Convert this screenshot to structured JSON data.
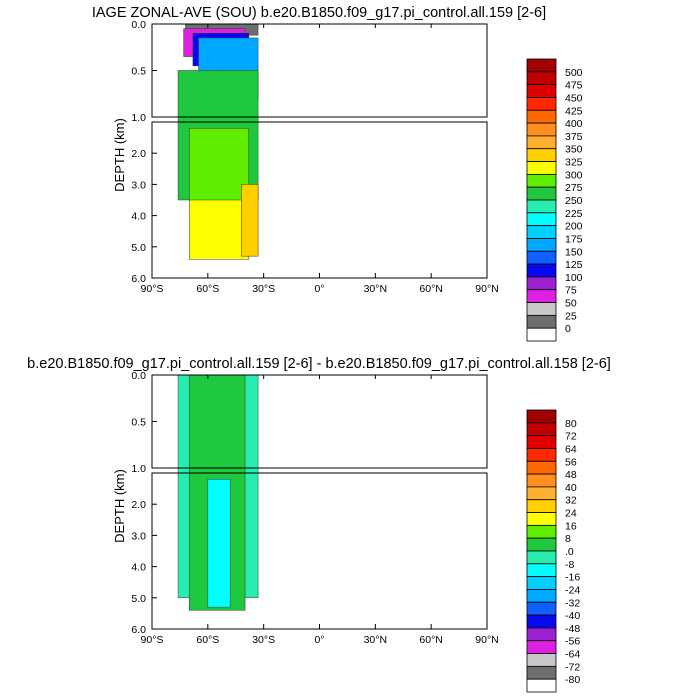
{
  "chart_data": [
    {
      "type": "heatmap",
      "title": "IAGE ZONAL-AVE (SOU) b.e20.B1850.f09_g17.pi_control.all.159 [2-6]",
      "ylabel": "DEPTH (km)",
      "xlim": [
        -90,
        90
      ],
      "ylim_top_panel": [
        0.0,
        1.0
      ],
      "ylim_bottom_panel": [
        1.0,
        6.0
      ],
      "x_tick_labels": [
        "90°S",
        "60°S",
        "30°S",
        "0°",
        "30°N",
        "60°N",
        "90°N"
      ],
      "x_tick_values": [
        -90,
        -60,
        -30,
        0,
        30,
        60,
        90
      ],
      "y_tick_labels_top": [
        "0.0",
        "0.5",
        "1.0"
      ],
      "y_tick_values_top": [
        0.0,
        0.5,
        1.0
      ],
      "y_tick_labels_bottom": [
        "2.0",
        "3.0",
        "4.0",
        "5.0",
        "6.0"
      ],
      "y_tick_values_bottom": [
        2.0,
        3.0,
        4.0,
        5.0,
        6.0
      ],
      "data_extent_lat": [
        -76,
        -33
      ],
      "colorbar_levels": [
        "0",
        "25",
        "50",
        "75",
        "100",
        "125",
        "150",
        "175",
        "200",
        "225",
        "250",
        "275",
        "300",
        "325",
        "350",
        "375",
        "400",
        "425",
        "450",
        "475",
        "500"
      ],
      "colorbar_colors": [
        "#ffffff",
        "#6e6e6e",
        "#c8c8c8",
        "#e020e0",
        "#9a20d0",
        "#0808f0",
        "#1060ff",
        "#00a8ff",
        "#00d0ff",
        "#00ffff",
        "#28ecb0",
        "#20c840",
        "#60ee00",
        "#ffff00",
        "#ffd000",
        "#ffb030",
        "#ff9020",
        "#ff6800",
        "#ff2800",
        "#e00000",
        "#c00000",
        "#a00000"
      ],
      "regions": [
        {
          "value_range": [
            0,
            25
          ],
          "level_index": 1,
          "depth_top": 0.0,
          "depth_bottom": 0.12,
          "lat_range": [
            -72,
            -33
          ]
        },
        {
          "value_range": [
            50,
            75
          ],
          "level_index": 3,
          "depth_top": 0.05,
          "depth_bottom": 0.35,
          "lat_range": [
            -73,
            -40
          ]
        },
        {
          "value_range": [
            100,
            125
          ],
          "level_index": 5,
          "depth_top": 0.1,
          "depth_bottom": 0.45,
          "lat_range": [
            -68,
            -38
          ]
        },
        {
          "value_range": [
            125,
            225
          ],
          "level_index": 7,
          "depth_top": 0.15,
          "depth_bottom": 0.8,
          "lat_range": [
            -65,
            -33
          ]
        },
        {
          "value_range": [
            250,
            275
          ],
          "level_index": 11,
          "depth_top": 0.5,
          "depth_bottom": 3.5,
          "lat_range": [
            -76,
            -33
          ]
        },
        {
          "value_range": [
            275,
            300
          ],
          "level_index": 12,
          "depth_top": 1.2,
          "depth_bottom": 3.8,
          "lat_range": [
            -70,
            -38
          ]
        },
        {
          "value_range": [
            300,
            325
          ],
          "level_index": 13,
          "depth_top": 3.5,
          "depth_bottom": 5.4,
          "lat_range": [
            -70,
            -38
          ]
        },
        {
          "value_range": [
            325,
            350
          ],
          "level_index": 14,
          "depth_top": 3.0,
          "depth_bottom": 5.3,
          "lat_range": [
            -42,
            -33
          ]
        }
      ]
    },
    {
      "type": "heatmap",
      "title": "b.e20.B1850.f09_g17.pi_control.all.159 [2-6] - b.e20.B1850.f09_g17.pi_control.all.158 [2-6]",
      "ylabel": "DEPTH (km)",
      "xlim": [
        -90,
        90
      ],
      "ylim_top_panel": [
        0.0,
        1.0
      ],
      "ylim_bottom_panel": [
        1.0,
        6.0
      ],
      "x_tick_labels": [
        "90°S",
        "60°S",
        "30°S",
        "0°",
        "30°N",
        "60°N",
        "90°N"
      ],
      "x_tick_values": [
        -90,
        -60,
        -30,
        0,
        30,
        60,
        90
      ],
      "y_tick_labels_top": [
        "0.0",
        "0.5",
        "1.0"
      ],
      "y_tick_values_top": [
        0.0,
        0.5,
        1.0
      ],
      "y_tick_labels_bottom": [
        "2.0",
        "3.0",
        "4.0",
        "5.0",
        "6.0"
      ],
      "y_tick_values_bottom": [
        2.0,
        3.0,
        4.0,
        5.0,
        6.0
      ],
      "data_extent_lat": [
        -76,
        -33
      ],
      "colorbar_levels": [
        "-80",
        "-72",
        "-64",
        "-56",
        "-48",
        "-40",
        "-32",
        "-24",
        "-16",
        "-8",
        ".0",
        "8",
        "16",
        "24",
        "32",
        "40",
        "48",
        "56",
        "64",
        "72",
        "80"
      ],
      "colorbar_colors": [
        "#ffffff",
        "#6e6e6e",
        "#c8c8c8",
        "#e020e0",
        "#9a20d0",
        "#0808f0",
        "#1060ff",
        "#00a8ff",
        "#00d0ff",
        "#00ffff",
        "#28ecb0",
        "#20c840",
        "#60ee00",
        "#ffff00",
        "#ffd000",
        "#ffb030",
        "#ff9020",
        "#ff6800",
        "#ff2800",
        "#e00000",
        "#c00000",
        "#a00000"
      ],
      "regions": [
        {
          "value_range": [
            -8,
            0
          ],
          "level_index": 10,
          "depth_top": 0.0,
          "depth_bottom": 5.0,
          "lat_range": [
            -76,
            -33
          ]
        },
        {
          "value_range": [
            0,
            8
          ],
          "level_index": 11,
          "depth_top": 0.0,
          "depth_bottom": 5.4,
          "lat_range": [
            -70,
            -40
          ]
        },
        {
          "value_range": [
            -16,
            -8
          ],
          "level_index": 9,
          "depth_top": 1.2,
          "depth_bottom": 5.3,
          "lat_range": [
            -60,
            -48
          ]
        }
      ]
    }
  ]
}
